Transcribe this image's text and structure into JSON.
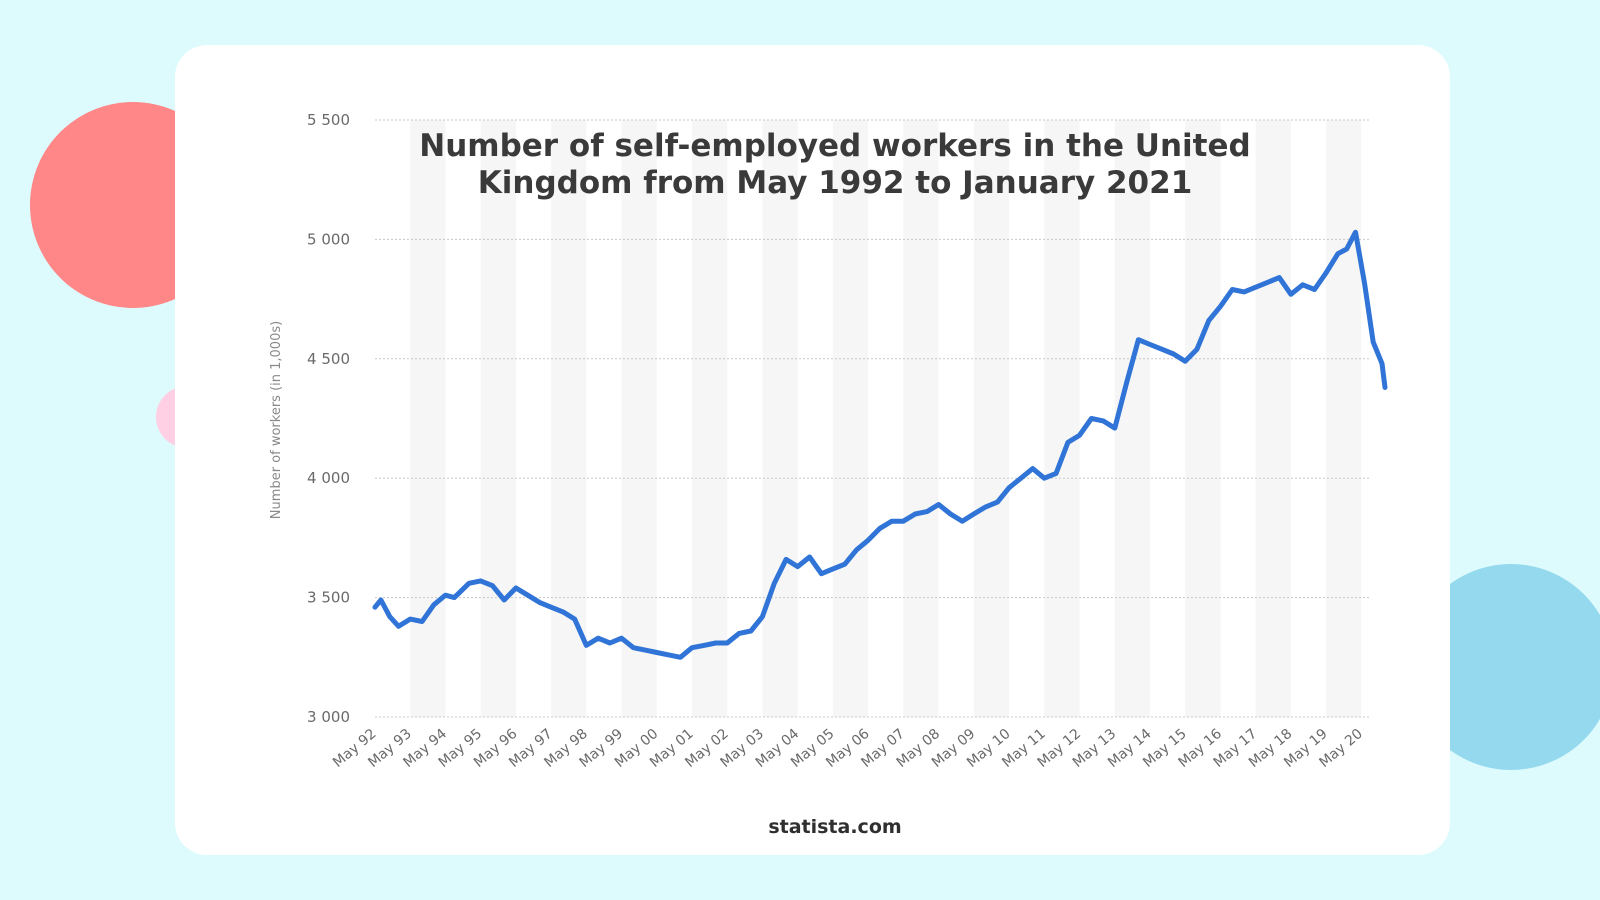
{
  "colors": {
    "background": "#ddfbfd",
    "card": "#ffffff",
    "line": "#2f74d6",
    "circle_red": "#ff8787",
    "circle_pink": "#ffcfe4",
    "circle_blue": "#95d9ee"
  },
  "source": "statista.com",
  "chart_data": {
    "type": "line",
    "title": "Number of self-employed workers in the United Kingdom from May 1992 to January 2021",
    "xlabel": "",
    "ylabel": "Number of workers (in 1,000s)",
    "ylim": [
      3000,
      5500
    ],
    "yticks": [
      3000,
      3500,
      4000,
      4500,
      5000,
      5500
    ],
    "ytick_labels": [
      "3 000",
      "3 500",
      "4 000",
      "4 500",
      "5 000",
      "5 500"
    ],
    "xtick_labels": [
      "May 92",
      "May 93",
      "May 94",
      "May 95",
      "May 96",
      "May 97",
      "May 98",
      "May 99",
      "May 00",
      "May 01",
      "May 02",
      "May 03",
      "May 04",
      "May 05",
      "May 06",
      "May 07",
      "May 08",
      "May 09",
      "May 10",
      "May 11",
      "May 12",
      "May 13",
      "May 14",
      "May 15",
      "May 16",
      "May 17",
      "May 18",
      "May 19",
      "May 20"
    ],
    "grid": true,
    "legend": "none",
    "series": [
      {
        "x": [
          "1992-05",
          "1992-07",
          "1992-10",
          "1993-01",
          "1993-05",
          "1993-09",
          "1994-01",
          "1994-05",
          "1994-08",
          "1995-01",
          "1995-05",
          "1995-09",
          "1996-01",
          "1996-05",
          "1996-09",
          "1997-01",
          "1997-05",
          "1997-09",
          "1998-01",
          "1998-05",
          "1998-09",
          "1999-01",
          "1999-05",
          "1999-09",
          "2000-01",
          "2000-05",
          "2000-09",
          "2001-01",
          "2001-05",
          "2001-09",
          "2002-01",
          "2002-05",
          "2002-09",
          "2003-01",
          "2003-05",
          "2003-09",
          "2004-01",
          "2004-05",
          "2004-09",
          "2005-01",
          "2005-05",
          "2005-09",
          "2006-01",
          "2006-05",
          "2006-09",
          "2007-01",
          "2007-05",
          "2007-09",
          "2008-01",
          "2008-05",
          "2008-09",
          "2009-01",
          "2009-05",
          "2009-09",
          "2010-01",
          "2010-05",
          "2010-09",
          "2011-01",
          "2011-05",
          "2011-09",
          "2012-01",
          "2012-05",
          "2012-09",
          "2013-01",
          "2013-05",
          "2013-09",
          "2014-01",
          "2014-05",
          "2014-09",
          "2015-01",
          "2015-05",
          "2015-09",
          "2016-01",
          "2016-05",
          "2016-09",
          "2017-01",
          "2017-05",
          "2017-09",
          "2018-01",
          "2018-05",
          "2018-09",
          "2019-01",
          "2019-05",
          "2019-09",
          "2019-12",
          "2020-03",
          "2020-06",
          "2020-09",
          "2020-12",
          "2021-01"
        ],
        "values": [
          3460,
          3490,
          3420,
          3380,
          3410,
          3400,
          3470,
          3510,
          3500,
          3560,
          3570,
          3550,
          3490,
          3540,
          3510,
          3480,
          3460,
          3440,
          3410,
          3300,
          3330,
          3310,
          3330,
          3290,
          3280,
          3270,
          3260,
          3250,
          3290,
          3300,
          3310,
          3310,
          3350,
          3360,
          3420,
          3560,
          3660,
          3630,
          3670,
          3600,
          3620,
          3640,
          3700,
          3740,
          3790,
          3820,
          3820,
          3850,
          3860,
          3890,
          3850,
          3820,
          3850,
          3880,
          3900,
          3960,
          4000,
          4040,
          4000,
          4020,
          4150,
          4180,
          4250,
          4240,
          4210,
          4400,
          4580,
          4560,
          4540,
          4520,
          4490,
          4540,
          4660,
          4720,
          4790,
          4780,
          4800,
          4820,
          4840,
          4770,
          4810,
          4790,
          4860,
          4940,
          4960,
          5030,
          4820,
          4570,
          4480,
          4380
        ]
      }
    ]
  }
}
